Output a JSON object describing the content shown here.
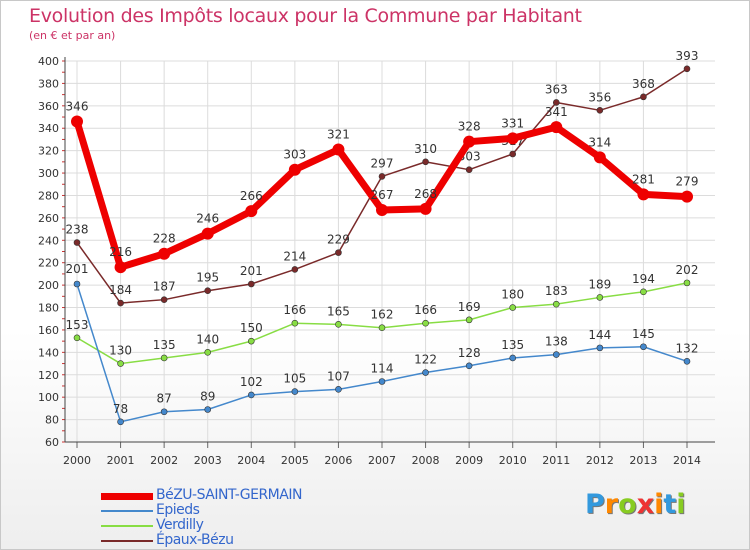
{
  "header": {
    "title": "Evolution des Impôts locaux pour la Commune par Habitant",
    "subtitle": "(en € et par an)"
  },
  "logo": {
    "text": "Proxiti"
  },
  "chart_data": {
    "type": "line",
    "title": "Evolution des Impôts locaux pour la Commune par Habitant",
    "subtitle": "(en € et par an)",
    "xlabel": "",
    "ylabel": "",
    "x": [
      2000,
      2001,
      2002,
      2003,
      2004,
      2005,
      2006,
      2007,
      2008,
      2009,
      2010,
      2011,
      2012,
      2013,
      2014
    ],
    "ylim": [
      60,
      400
    ],
    "yticks": [
      60,
      80,
      100,
      120,
      140,
      160,
      180,
      200,
      220,
      240,
      260,
      280,
      300,
      320,
      340,
      360,
      380,
      400
    ],
    "grid": true,
    "legend_position": "bottom-left",
    "series": [
      {
        "name": "Épaux-Bézu",
        "color": "#7a2a2a",
        "values": [
          238,
          184,
          187,
          195,
          201,
          214,
          229,
          297,
          310,
          303,
          317,
          363,
          356,
          368,
          393
        ]
      },
      {
        "name": "Verdilly",
        "color": "#88dd44",
        "values": [
          153,
          130,
          135,
          140,
          150,
          166,
          165,
          162,
          166,
          169,
          180,
          183,
          189,
          194,
          202
        ]
      },
      {
        "name": "Epieds",
        "color": "#4488cc",
        "values": [
          201,
          78,
          87,
          89,
          102,
          105,
          107,
          114,
          122,
          128,
          135,
          138,
          144,
          145,
          132
        ]
      },
      {
        "name": "BéZU-SAINT-GERMAIN",
        "color": "#ee0000",
        "values": [
          346,
          216,
          228,
          246,
          266,
          303,
          321,
          267,
          268,
          328,
          331,
          341,
          314,
          281,
          279
        ]
      }
    ]
  }
}
